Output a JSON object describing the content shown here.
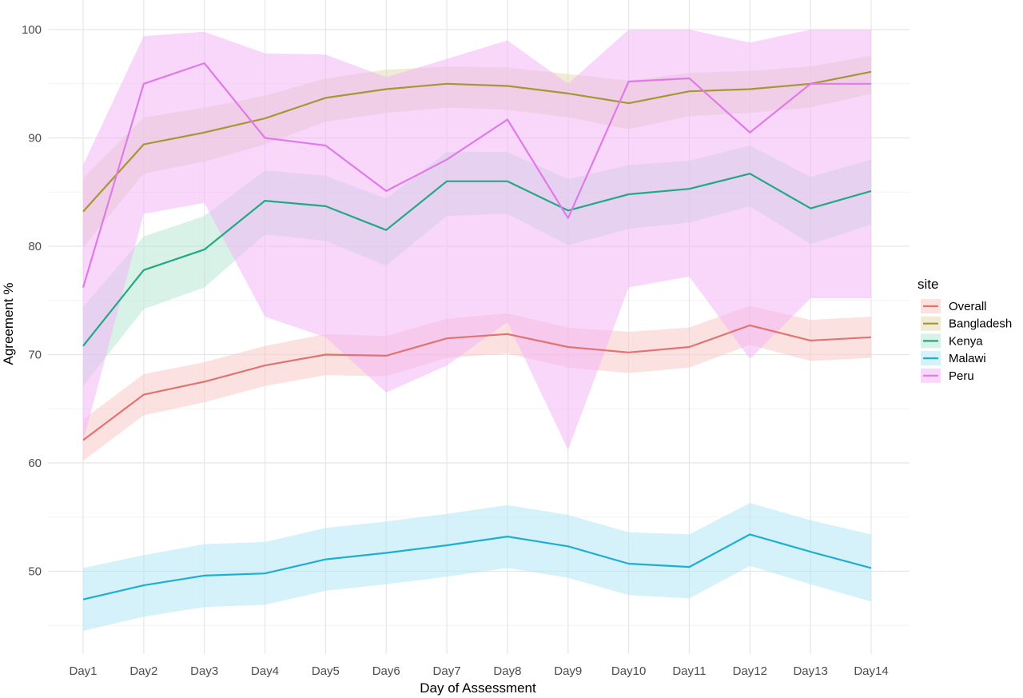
{
  "chart_data": {
    "type": "line",
    "title": "",
    "xlabel": "Day of Assessment",
    "ylabel": "Agreement %",
    "categories": [
      "Day1",
      "Day2",
      "Day3",
      "Day4",
      "Day5",
      "Day6",
      "Day7",
      "Day8",
      "Day9",
      "Day10",
      "Day11",
      "Day12",
      "Day13",
      "Day14"
    ],
    "ylim": [
      43,
      102
    ],
    "yticks": [
      50,
      60,
      70,
      80,
      90,
      100
    ],
    "grid": true,
    "legend": {
      "title": "site",
      "position": "right"
    },
    "series": [
      {
        "name": "Overall",
        "color": "#E07470",
        "band_color": "#F8C9C7",
        "values": [
          62.1,
          66.3,
          67.5,
          69.0,
          70.0,
          69.9,
          71.5,
          71.9,
          70.7,
          70.2,
          70.7,
          72.7,
          71.3,
          71.6
        ],
        "lower": [
          60.2,
          64.4,
          65.6,
          67.1,
          68.1,
          68.0,
          69.7,
          70.1,
          68.8,
          68.3,
          68.8,
          70.9,
          69.4,
          69.7
        ],
        "upper": [
          64.0,
          68.2,
          69.3,
          70.8,
          71.9,
          71.7,
          73.3,
          73.8,
          72.5,
          72.1,
          72.5,
          74.5,
          73.2,
          73.5
        ]
      },
      {
        "name": "Bangladesh",
        "color": "#A89534",
        "band_color": "#E3DAB0",
        "values": [
          83.2,
          89.4,
          90.5,
          91.8,
          93.7,
          94.5,
          95.0,
          94.8,
          94.1,
          93.2,
          94.3,
          94.5,
          95.0,
          96.1
        ],
        "lower": [
          79.9,
          86.7,
          87.8,
          89.4,
          91.5,
          92.3,
          92.8,
          92.6,
          91.9,
          90.8,
          92.0,
          92.3,
          92.8,
          94.1
        ],
        "upper": [
          86.3,
          91.9,
          92.8,
          93.9,
          95.5,
          96.3,
          96.6,
          96.5,
          95.9,
          95.3,
          96.0,
          96.2,
          96.6,
          97.6
        ]
      },
      {
        "name": "Kenya",
        "color": "#22A883",
        "band_color": "#B8E8D6",
        "values": [
          70.8,
          77.8,
          79.7,
          84.2,
          83.7,
          81.5,
          86.0,
          86.0,
          83.3,
          84.8,
          85.3,
          86.7,
          83.5,
          85.1
        ],
        "lower": [
          67.1,
          74.2,
          76.2,
          81.1,
          80.5,
          78.2,
          82.8,
          83.0,
          80.1,
          81.6,
          82.2,
          83.7,
          80.2,
          82.0
        ],
        "upper": [
          74.4,
          80.9,
          82.8,
          87.0,
          86.5,
          84.4,
          88.7,
          88.7,
          86.2,
          87.5,
          87.9,
          89.3,
          86.4,
          88.0
        ]
      },
      {
        "name": "Malawi",
        "color": "#1EAFD0",
        "band_color": "#B3E5F5",
        "values": [
          47.4,
          48.7,
          49.6,
          49.8,
          51.1,
          51.7,
          52.4,
          53.2,
          52.3,
          50.7,
          50.4,
          53.4,
          51.8,
          50.3
        ],
        "lower": [
          44.5,
          45.8,
          46.7,
          46.9,
          48.2,
          48.8,
          49.5,
          50.3,
          49.4,
          47.8,
          47.5,
          50.5,
          48.8,
          47.2
        ],
        "upper": [
          50.3,
          51.5,
          52.5,
          52.7,
          54.0,
          54.6,
          55.3,
          56.1,
          55.2,
          53.6,
          53.4,
          56.3,
          54.7,
          53.4
        ]
      },
      {
        "name": "Peru",
        "color": "#E07AE8",
        "band_color": "#F2B6F7",
        "values": [
          76.2,
          95.0,
          96.9,
          90.0,
          89.3,
          85.1,
          88.0,
          91.7,
          82.6,
          95.2,
          95.5,
          90.5,
          95.0,
          95.0
        ],
        "lower": [
          62.0,
          83.0,
          84.0,
          73.5,
          71.6,
          66.5,
          69.0,
          73.0,
          61.2,
          76.2,
          77.2,
          69.6,
          75.2,
          75.2
        ],
        "upper": [
          87.5,
          99.4,
          99.8,
          97.8,
          97.7,
          95.6,
          97.3,
          99.0,
          95.0,
          100.0,
          100.0,
          98.8,
          100.0,
          100.0
        ]
      }
    ]
  }
}
